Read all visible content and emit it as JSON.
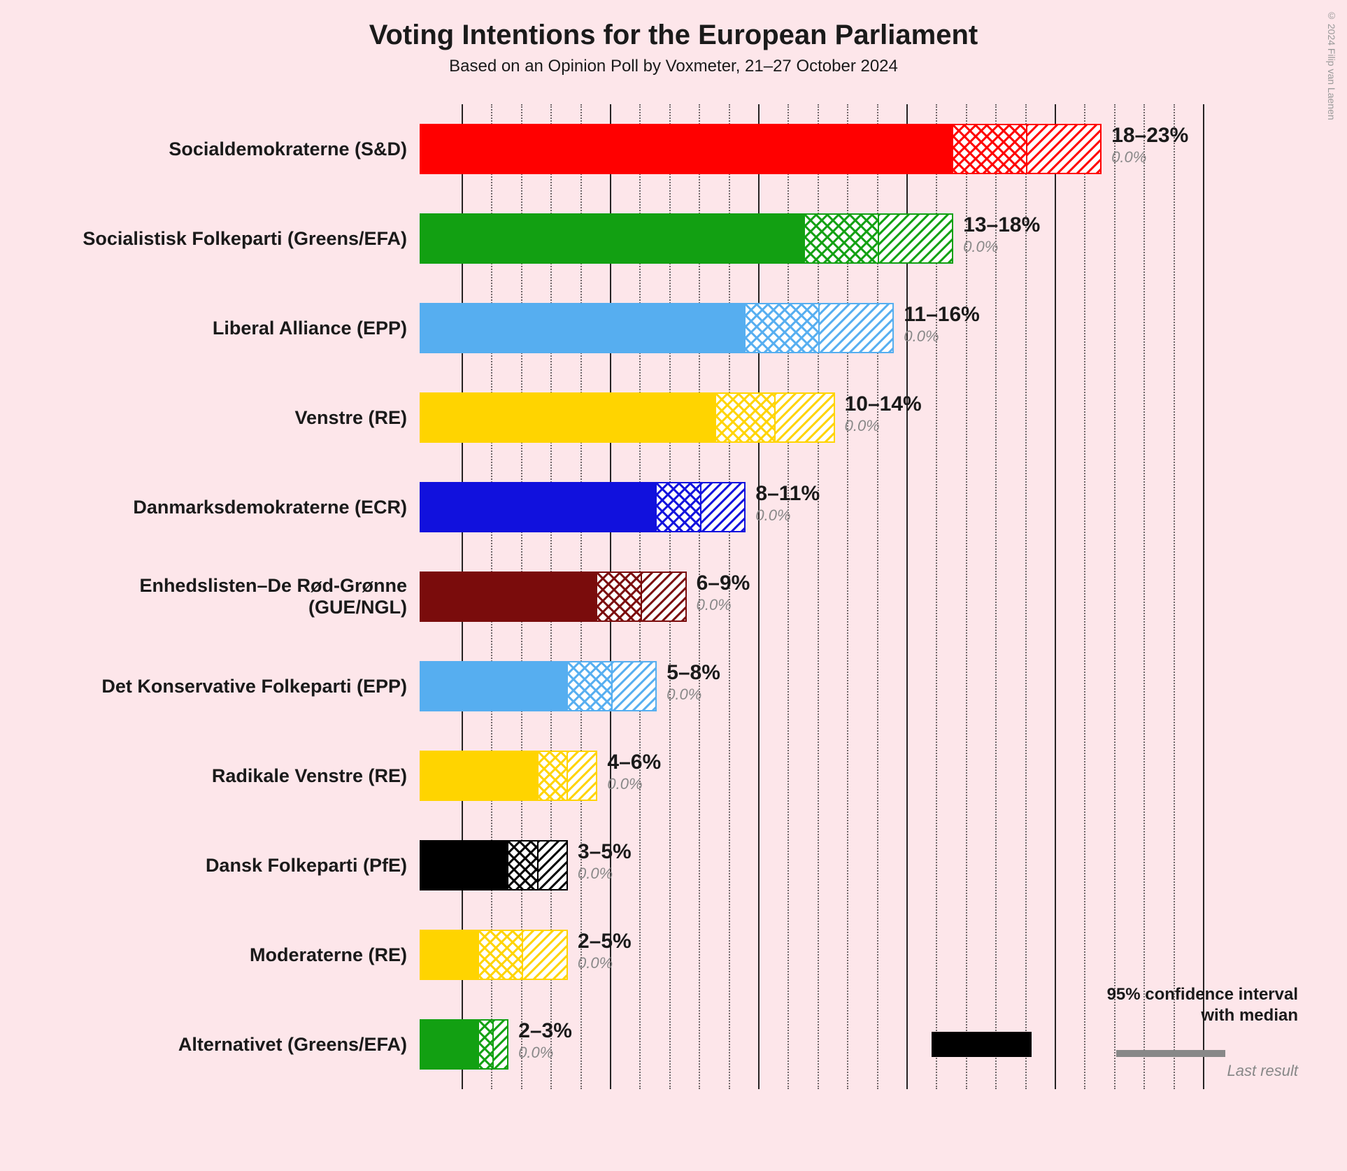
{
  "title": "Voting Intentions for the European Parliament",
  "subtitle": "Based on an Opinion Poll by Voxmeter, 21–27 October 2024",
  "credit": "© 2024 Filip van Laenen",
  "title_fontsize": 40,
  "subtitle_fontsize": 24,
  "label_fontsize": 27,
  "range_fontsize": 30,
  "last_fontsize": 22,
  "legend_fontsize": 24,
  "background_color": "#fde6ea",
  "scale_max": 25,
  "major_ticks": [
    0,
    5,
    10,
    15,
    20,
    25
  ],
  "minor_tick_step": 1,
  "parties": [
    {
      "name": "Socialdemokraterne (S&D)",
      "color": "#ff0000",
      "low": 18,
      "mid": 20.5,
      "high": 23,
      "range": "18–23%",
      "last": "0.0%"
    },
    {
      "name": "Socialistisk Folkeparti (Greens/EFA)",
      "color": "#12a012",
      "low": 13,
      "mid": 15.5,
      "high": 18,
      "range": "13–18%",
      "last": "0.0%"
    },
    {
      "name": "Liberal Alliance (EPP)",
      "color": "#56aef0",
      "low": 11,
      "mid": 13.5,
      "high": 16,
      "range": "11–16%",
      "last": "0.0%"
    },
    {
      "name": "Venstre (RE)",
      "color": "#ffd400",
      "low": 10,
      "mid": 12,
      "high": 14,
      "range": "10–14%",
      "last": "0.0%"
    },
    {
      "name": "Danmarksdemokraterne (ECR)",
      "color": "#1111dd",
      "low": 8,
      "mid": 9.5,
      "high": 11,
      "range": "8–11%",
      "last": "0.0%"
    },
    {
      "name": "Enhedslisten–De Rød-Grønne (GUE/NGL)",
      "color": "#7a0c0c",
      "low": 6,
      "mid": 7.5,
      "high": 9,
      "range": "6–9%",
      "last": "0.0%"
    },
    {
      "name": "Det Konservative Folkeparti (EPP)",
      "color": "#56aef0",
      "low": 5,
      "mid": 6.5,
      "high": 8,
      "range": "5–8%",
      "last": "0.0%"
    },
    {
      "name": "Radikale Venstre (RE)",
      "color": "#ffd400",
      "low": 4,
      "mid": 5,
      "high": 6,
      "range": "4–6%",
      "last": "0.0%"
    },
    {
      "name": "Dansk Folkeparti (PfE)",
      "color": "#000000",
      "low": 3,
      "mid": 4,
      "high": 5,
      "range": "3–5%",
      "last": "0.0%"
    },
    {
      "name": "Moderaterne (RE)",
      "color": "#ffd400",
      "low": 2,
      "mid": 3.5,
      "high": 5,
      "range": "2–5%",
      "last": "0.0%"
    },
    {
      "name": "Alternativet (Greens/EFA)",
      "color": "#12a012",
      "low": 2,
      "mid": 2.5,
      "high": 3,
      "range": "2–3%",
      "last": "0.0%"
    }
  ],
  "legend": {
    "line1": "95% confidence interval",
    "line2": "with median",
    "last_result": "Last result",
    "swatch_color": "#000000"
  }
}
